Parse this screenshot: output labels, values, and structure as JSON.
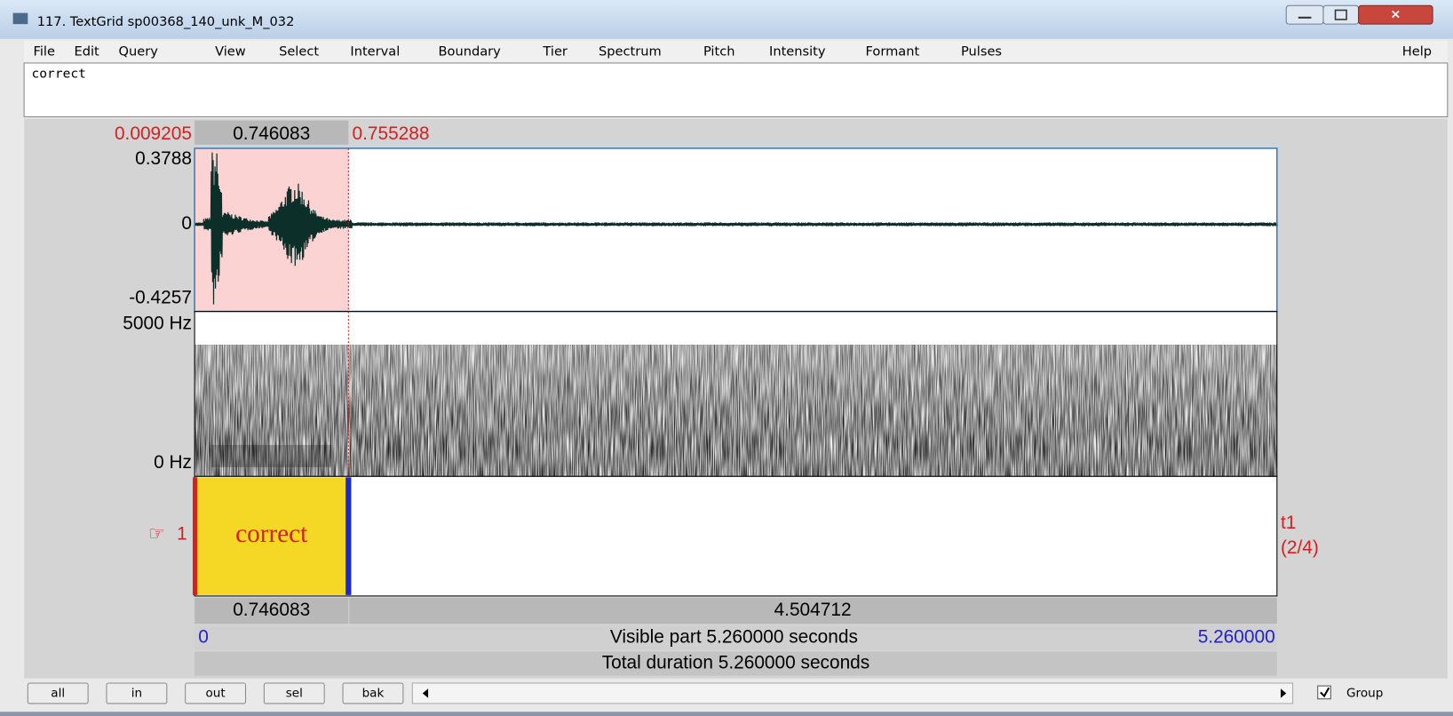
{
  "window": {
    "title": "117. TextGrid sp00368_140_unk_M_032"
  },
  "menu": {
    "items": [
      "File",
      "Edit",
      "Query",
      "View",
      "Select",
      "Interval",
      "Boundary",
      "Tier",
      "Spectrum",
      "Pitch",
      "Intensity",
      "Formant",
      "Pulses"
    ],
    "help": "Help"
  },
  "text_field": "correct",
  "selection_bar": {
    "start": "0.009205",
    "duration": "0.746083",
    "end": "0.755288"
  },
  "waveform": {
    "max": "0.3788",
    "zero": "0",
    "min": "-0.4257"
  },
  "spectrogram": {
    "top": "5000 Hz",
    "bottom": "0 Hz"
  },
  "tier": {
    "pointer": "☞",
    "number": "1",
    "interval_label": "correct",
    "name": "t1",
    "count": "(2/4)"
  },
  "durations": {
    "interval": "0.746083",
    "rest": "4.504712"
  },
  "visible": {
    "start": "0",
    "label": "Visible part 5.260000 seconds",
    "end": "5.260000"
  },
  "total": "Total duration 5.260000 seconds",
  "buttons": [
    "all",
    "in",
    "out",
    "sel",
    "bak"
  ],
  "group": "Group"
}
